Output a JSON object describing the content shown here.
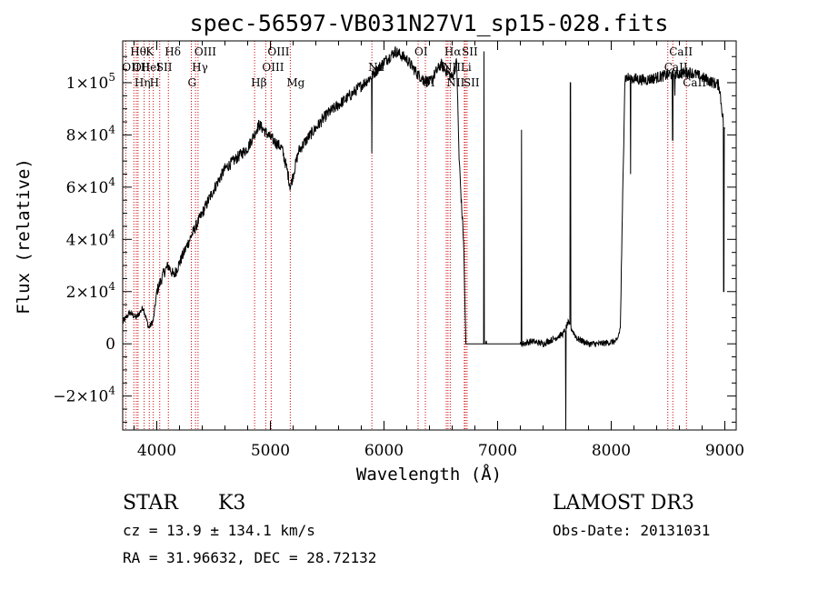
{
  "chart_data": {
    "type": "line",
    "title": "spec-56597-VB031N27V1_sp15-028.fits",
    "xlabel": "Wavelength (Å)",
    "ylabel": "Flux (relative)",
    "xlim": [
      3700,
      9100
    ],
    "ylim": [
      -33000,
      116000
    ],
    "x_ticks": [
      {
        "value": 4000,
        "label": "4000"
      },
      {
        "value": 5000,
        "label": "5000"
      },
      {
        "value": 6000,
        "label": "6000"
      },
      {
        "value": 7000,
        "label": "7000"
      },
      {
        "value": 8000,
        "label": "8000"
      },
      {
        "value": 9000,
        "label": "9000"
      }
    ],
    "y_ticks": [
      {
        "value": -20000,
        "label": "−2×10",
        "exp": "4"
      },
      {
        "value": 0,
        "label": "0",
        "exp": ""
      },
      {
        "value": 20000,
        "label": "2×10",
        "exp": "4"
      },
      {
        "value": 40000,
        "label": "4×10",
        "exp": "4"
      },
      {
        "value": 60000,
        "label": "6×10",
        "exp": "4"
      },
      {
        "value": 80000,
        "label": "8×10",
        "exp": "4"
      },
      {
        "value": 100000,
        "label": "1×10",
        "exp": "5"
      }
    ],
    "line_color": "#000000",
    "marker_color": "#cc0000",
    "spectral_lines": [
      {
        "x": 3727,
        "label": "OII",
        "row": 1
      },
      {
        "x": 3798,
        "label": "Hθ",
        "row": 0
      },
      {
        "x": 3820,
        "label": "OII",
        "row": 1
      },
      {
        "x": 3835,
        "label": "Hη",
        "row": 2
      },
      {
        "x": 3889,
        "label": "HeI",
        "row": 1
      },
      {
        "x": 3934,
        "label": "K",
        "row": 0
      },
      {
        "x": 3969,
        "label": "H",
        "row": 2
      },
      {
        "x": 4026,
        "label": "SII",
        "row": 1
      },
      {
        "x": 4102,
        "label": "Hδ",
        "row": 0
      },
      {
        "x": 4304,
        "label": "G",
        "row": 2
      },
      {
        "x": 4341,
        "label": "Hγ",
        "row": 1
      },
      {
        "x": 4363,
        "label": "OIII",
        "row": 0
      },
      {
        "x": 4861,
        "label": "Hβ",
        "row": 2
      },
      {
        "x": 4959,
        "label": "OIII",
        "row": 1
      },
      {
        "x": 5007,
        "label": "OIII",
        "row": 0
      },
      {
        "x": 5175,
        "label": "Mg",
        "row": 2
      },
      {
        "x": 5893,
        "label": "Na",
        "row": 1
      },
      {
        "x": 6300,
        "label": "OI",
        "row": 0
      },
      {
        "x": 6364,
        "label": "OI",
        "row": 2
      },
      {
        "x": 6548,
        "label": "NII",
        "row": 1
      },
      {
        "x": 6563,
        "label": "Hα",
        "row": 0
      },
      {
        "x": 6583,
        "label": "NII",
        "row": 2
      },
      {
        "x": 6707,
        "label": "Li",
        "row": 1
      },
      {
        "x": 6716,
        "label": "SII",
        "row": 0
      },
      {
        "x": 6731,
        "label": "SII",
        "row": 2
      },
      {
        "x": 8498,
        "label": "CaII",
        "row": 1
      },
      {
        "x": 8542,
        "label": "CaII",
        "row": 0
      },
      {
        "x": 8662,
        "label": "CaII",
        "row": 2
      }
    ],
    "spectrum_nodes": [
      [
        3700,
        8000
      ],
      [
        3760,
        12000
      ],
      [
        3820,
        10000
      ],
      [
        3880,
        14000
      ],
      [
        3930,
        6000
      ],
      [
        3970,
        9000
      ],
      [
        4000,
        20000
      ],
      [
        4060,
        27000
      ],
      [
        4100,
        30000
      ],
      [
        4150,
        26000
      ],
      [
        4200,
        31000
      ],
      [
        4300,
        41000
      ],
      [
        4400,
        50000
      ],
      [
        4500,
        59000
      ],
      [
        4600,
        67000
      ],
      [
        4700,
        71000
      ],
      [
        4800,
        75000
      ],
      [
        4900,
        84000
      ],
      [
        5000,
        79000
      ],
      [
        5100,
        75000
      ],
      [
        5150,
        66000
      ],
      [
        5175,
        60000
      ],
      [
        5250,
        74000
      ],
      [
        5350,
        80000
      ],
      [
        5500,
        88000
      ],
      [
        5700,
        95000
      ],
      [
        5880,
        102000
      ],
      [
        6000,
        108000
      ],
      [
        6100,
        112000
      ],
      [
        6200,
        109000
      ],
      [
        6300,
        103000
      ],
      [
        6400,
        100000
      ],
      [
        6500,
        107000
      ],
      [
        6600,
        102000
      ],
      [
        6640,
        108000
      ],
      [
        6660,
        72000
      ],
      [
        6680,
        55000
      ],
      [
        6700,
        40000
      ],
      [
        6720,
        0
      ],
      [
        6900,
        0
      ],
      [
        7180,
        0
      ],
      [
        7220,
        0
      ],
      [
        7300,
        1000
      ],
      [
        7400,
        0
      ],
      [
        7500,
        2000
      ],
      [
        7580,
        4000
      ],
      [
        7620,
        8000
      ],
      [
        7700,
        2000
      ],
      [
        7800,
        0
      ],
      [
        7900,
        0
      ],
      [
        8050,
        1000
      ],
      [
        8080,
        6000
      ],
      [
        8120,
        102000
      ],
      [
        8300,
        101000
      ],
      [
        8500,
        103000
      ],
      [
        8700,
        104000
      ],
      [
        8850,
        101000
      ],
      [
        8950,
        99000
      ],
      [
        9000,
        80000
      ]
    ],
    "spikes": [
      [
        5893,
        73000
      ],
      [
        6880,
        112000
      ],
      [
        6900,
        1000
      ],
      [
        7210,
        82000
      ],
      [
        7600,
        -35000
      ],
      [
        7640,
        100000
      ],
      [
        8170,
        65000
      ],
      [
        8540,
        78000
      ],
      [
        8560,
        95000
      ],
      [
        8990,
        20000
      ]
    ],
    "info": {
      "class_label": "STAR",
      "subclass_label": "K3",
      "survey": "LAMOST DR3",
      "cz_text": "cz = 13.9 ± 134.1 km/s",
      "obsdate_text": "Obs-Date: 20131031",
      "radec_text": "RA =  31.96632, DEC =  28.72132"
    }
  }
}
